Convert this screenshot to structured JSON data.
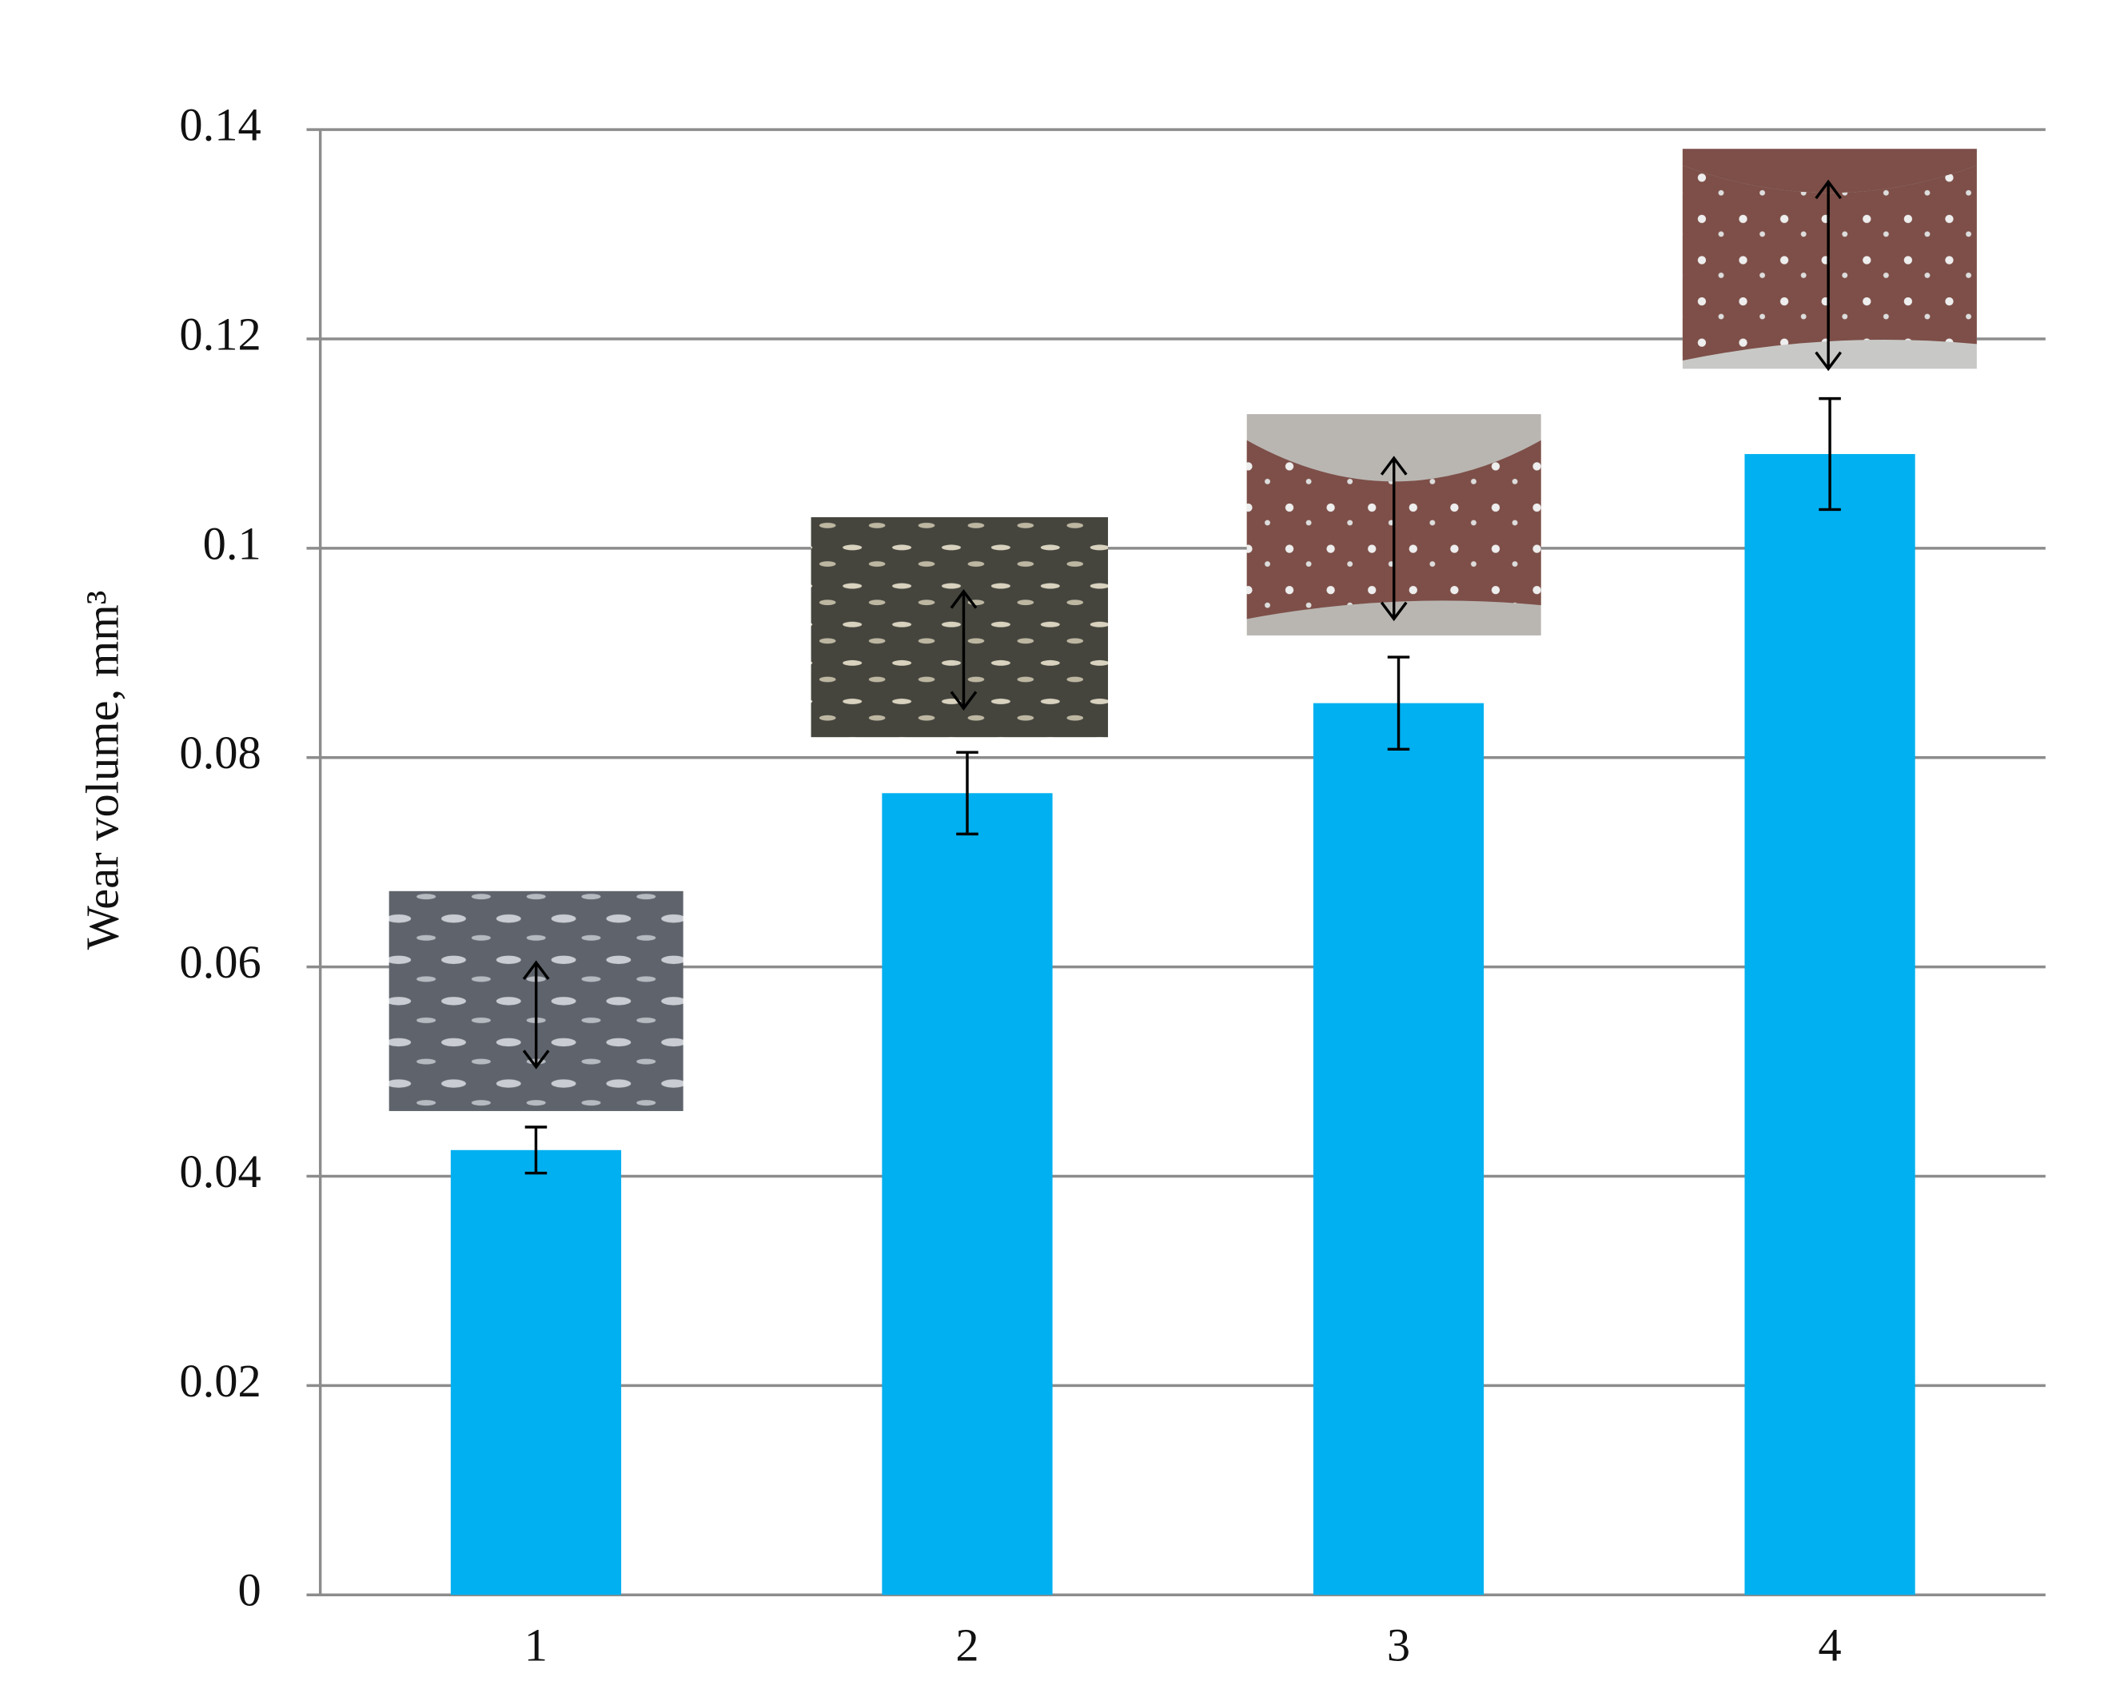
{
  "chart_data": {
    "type": "bar",
    "y_label": "Wear volume,  mm³",
    "categories": [
      "1",
      "2",
      "3",
      "4"
    ],
    "series": [
      {
        "color": "#00b0f0",
        "values": [
          0.0425,
          0.0766,
          0.0852,
          0.109
        ],
        "errors": [
          0.0022,
          0.0039,
          0.0044,
          0.0053
        ]
      }
    ],
    "ylim": [
      0,
      0.14
    ],
    "yticks": [
      0,
      0.02,
      0.04,
      0.06,
      0.08,
      0.1,
      0.12,
      0.14
    ],
    "grid": true
  }
}
